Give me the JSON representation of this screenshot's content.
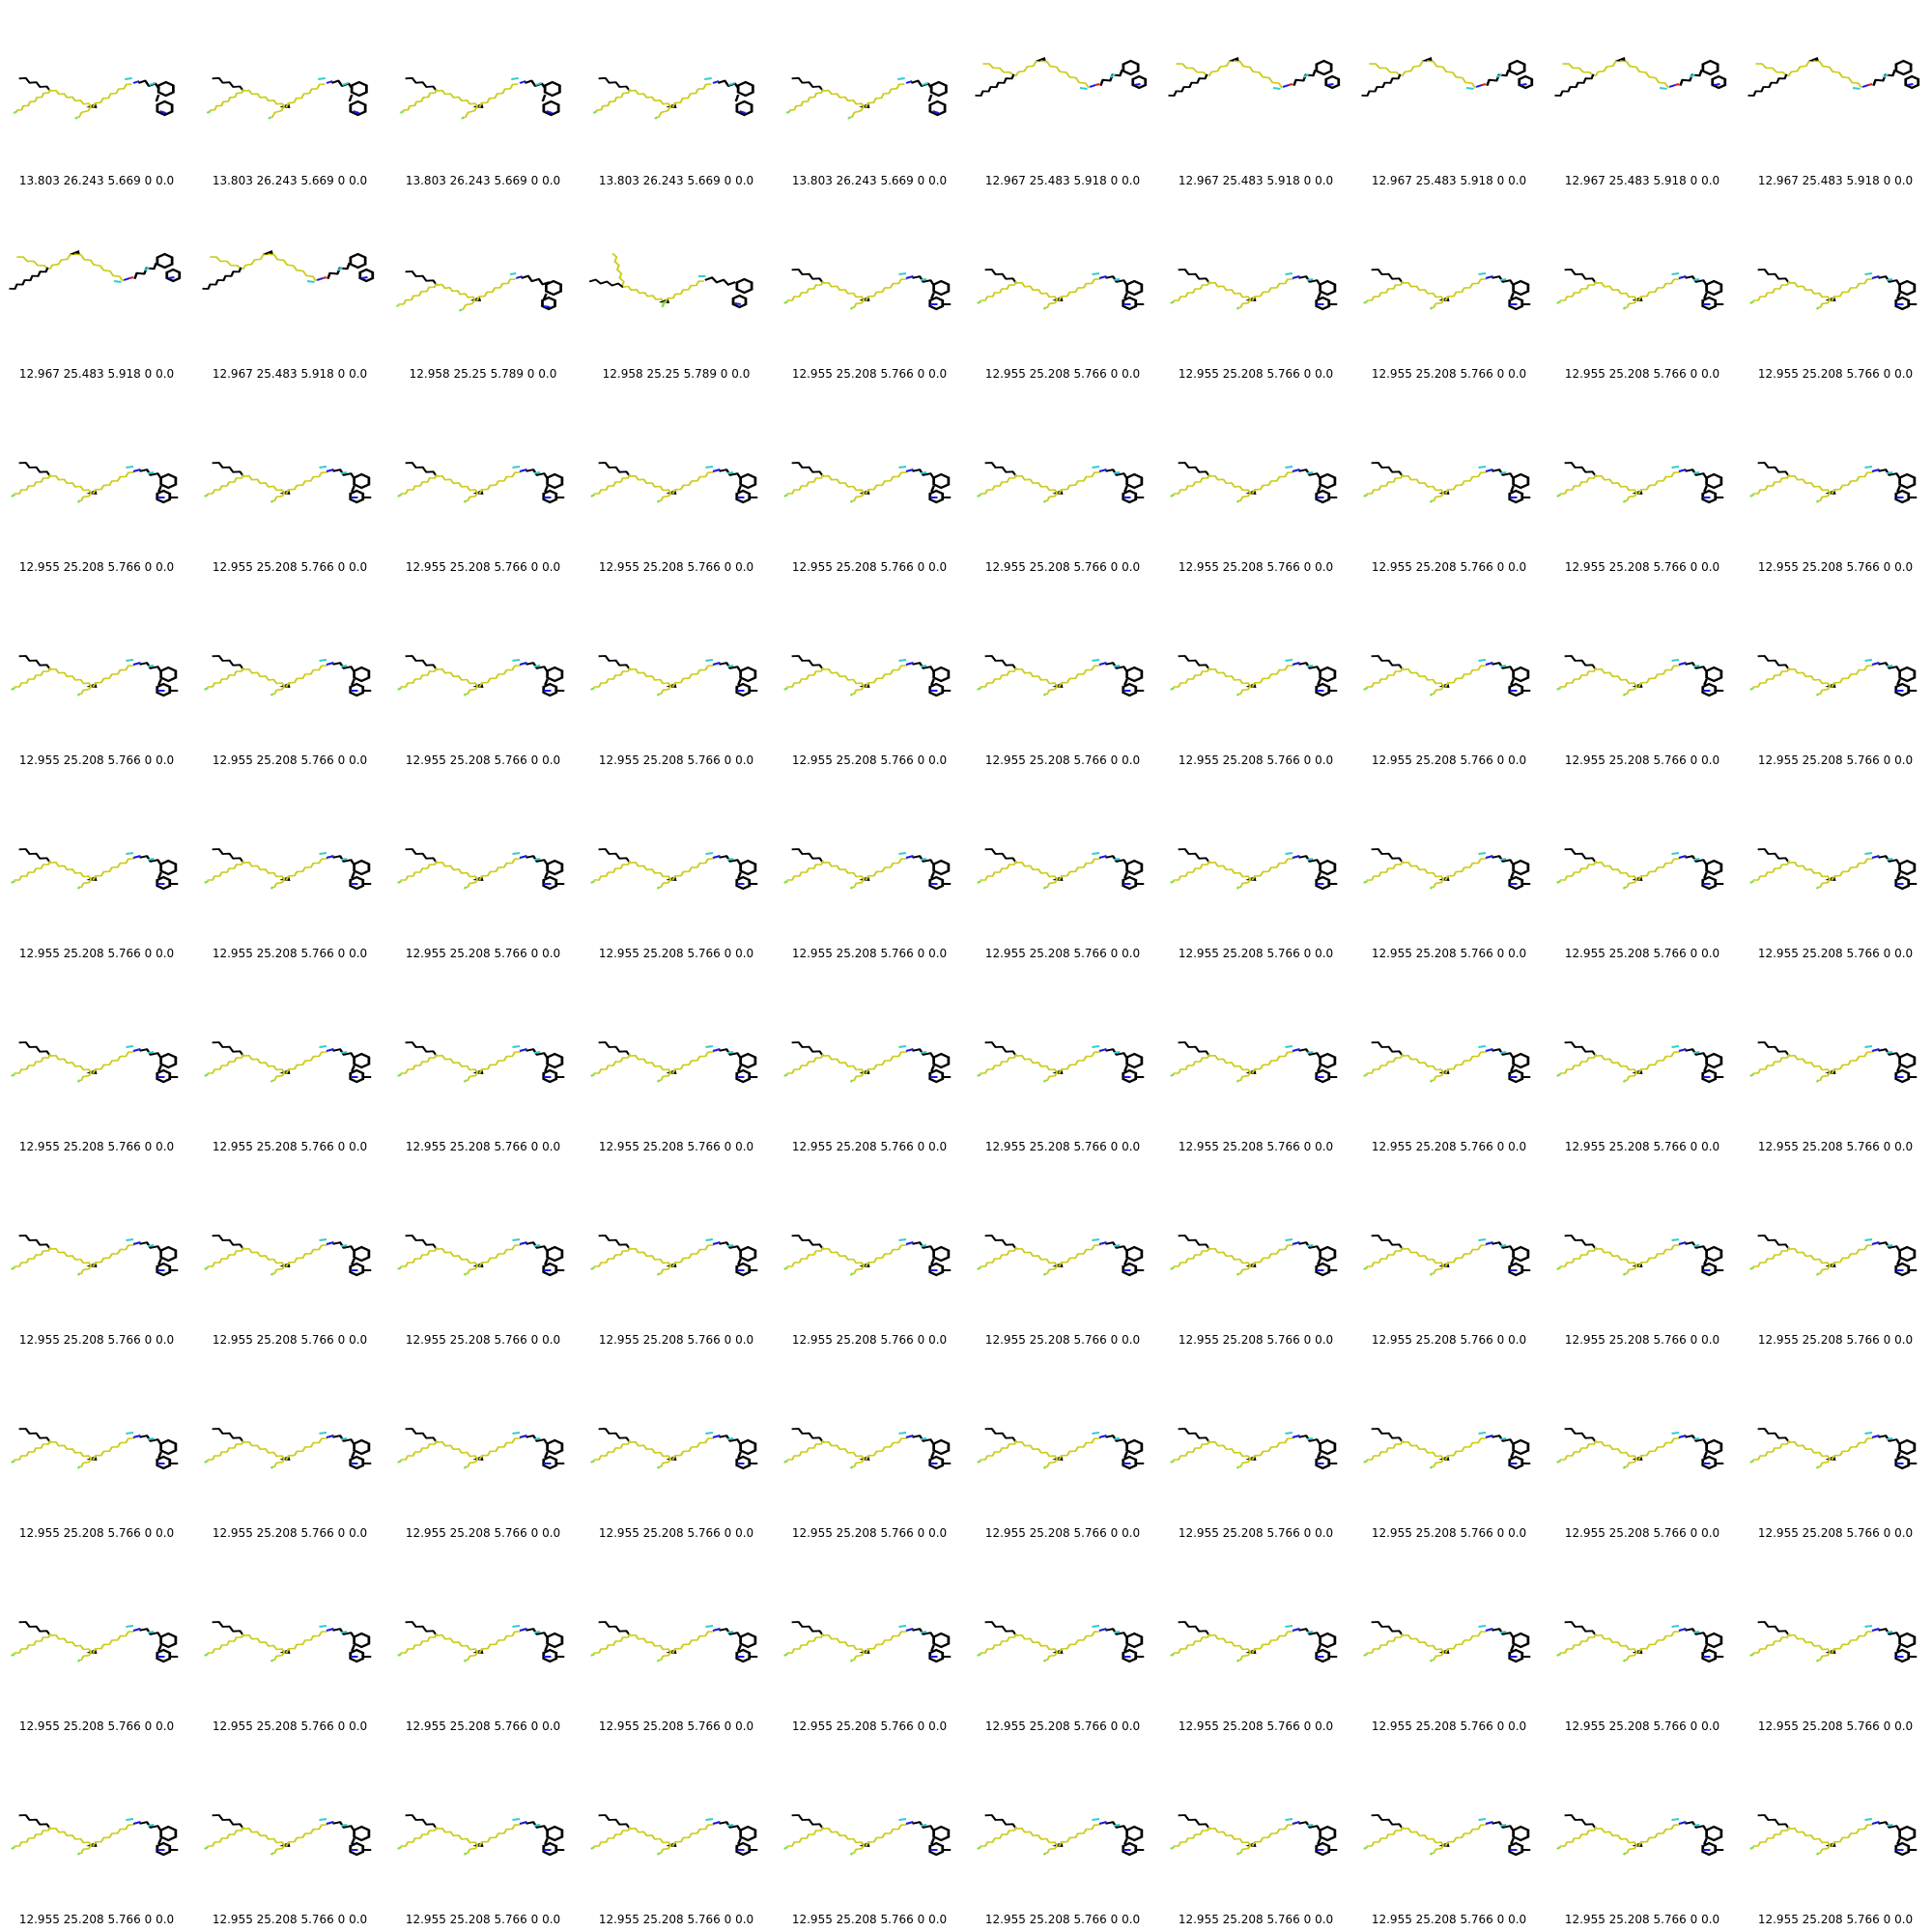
{
  "title": "",
  "colors": {
    "carbon": "#000000",
    "chain": "#cccc1a",
    "chain_end": "#80e04d",
    "nitrogen": "#1a1ae6",
    "oxygen": "#e61a1a",
    "fluorine": "#33cccc"
  },
  "cells": [
    {
      "label": "13.803 26.243 5.669 0 0.0",
      "pose": "A"
    },
    {
      "label": "13.803 26.243 5.669 0 0.0",
      "pose": "A"
    },
    {
      "label": "13.803 26.243 5.669 0 0.0",
      "pose": "A"
    },
    {
      "label": "13.803 26.243 5.669 0 0.0",
      "pose": "A"
    },
    {
      "label": "13.803 26.243 5.669 0 0.0",
      "pose": "A"
    },
    {
      "label": "12.967 25.483 5.918 0 0.0",
      "pose": "B"
    },
    {
      "label": "12.967 25.483 5.918 0 0.0",
      "pose": "B"
    },
    {
      "label": "12.967 25.483 5.918 0 0.0",
      "pose": "B"
    },
    {
      "label": "12.967 25.483 5.918 0 0.0",
      "pose": "B"
    },
    {
      "label": "12.967 25.483 5.918 0 0.0",
      "pose": "B"
    },
    {
      "label": "12.967 25.483 5.918 0 0.0",
      "pose": "B"
    },
    {
      "label": "12.967 25.483 5.918 0 0.0",
      "pose": "B"
    },
    {
      "label": "12.958 25.25 5.789 0 0.0",
      "pose": "C"
    },
    {
      "label": "12.958 25.25 5.789 0 0.0",
      "pose": "D"
    },
    {
      "label": "12.955 25.208 5.766 0 0.0",
      "pose": "E"
    },
    {
      "label": "12.955 25.208 5.766 0 0.0",
      "pose": "E"
    },
    {
      "label": "12.955 25.208 5.766 0 0.0",
      "pose": "E"
    },
    {
      "label": "12.955 25.208 5.766 0 0.0",
      "pose": "E"
    },
    {
      "label": "12.955 25.208 5.766 0 0.0",
      "pose": "E"
    },
    {
      "label": "12.955 25.208 5.766 0 0.0",
      "pose": "E"
    },
    {
      "label": "12.955 25.208 5.766 0 0.0",
      "pose": "E"
    },
    {
      "label": "12.955 25.208 5.766 0 0.0",
      "pose": "E"
    },
    {
      "label": "12.955 25.208 5.766 0 0.0",
      "pose": "E"
    },
    {
      "label": "12.955 25.208 5.766 0 0.0",
      "pose": "E"
    },
    {
      "label": "12.955 25.208 5.766 0 0.0",
      "pose": "E"
    },
    {
      "label": "12.955 25.208 5.766 0 0.0",
      "pose": "E"
    },
    {
      "label": "12.955 25.208 5.766 0 0.0",
      "pose": "E"
    },
    {
      "label": "12.955 25.208 5.766 0 0.0",
      "pose": "E"
    },
    {
      "label": "12.955 25.208 5.766 0 0.0",
      "pose": "E"
    },
    {
      "label": "12.955 25.208 5.766 0 0.0",
      "pose": "E"
    },
    {
      "label": "12.955 25.208 5.766 0 0.0",
      "pose": "E"
    },
    {
      "label": "12.955 25.208 5.766 0 0.0",
      "pose": "E"
    },
    {
      "label": "12.955 25.208 5.766 0 0.0",
      "pose": "E"
    },
    {
      "label": "12.955 25.208 5.766 0 0.0",
      "pose": "E"
    },
    {
      "label": "12.955 25.208 5.766 0 0.0",
      "pose": "E"
    },
    {
      "label": "12.955 25.208 5.766 0 0.0",
      "pose": "E"
    },
    {
      "label": "12.955 25.208 5.766 0 0.0",
      "pose": "E"
    },
    {
      "label": "12.955 25.208 5.766 0 0.0",
      "pose": "E"
    },
    {
      "label": "12.955 25.208 5.766 0 0.0",
      "pose": "E"
    },
    {
      "label": "12.955 25.208 5.766 0 0.0",
      "pose": "E"
    },
    {
      "label": "12.955 25.208 5.766 0 0.0",
      "pose": "E"
    },
    {
      "label": "12.955 25.208 5.766 0 0.0",
      "pose": "E"
    },
    {
      "label": "12.955 25.208 5.766 0 0.0",
      "pose": "E"
    },
    {
      "label": "12.955 25.208 5.766 0 0.0",
      "pose": "E"
    },
    {
      "label": "12.955 25.208 5.766 0 0.0",
      "pose": "E"
    },
    {
      "label": "12.955 25.208 5.766 0 0.0",
      "pose": "E"
    },
    {
      "label": "12.955 25.208 5.766 0 0.0",
      "pose": "E"
    },
    {
      "label": "12.955 25.208 5.766 0 0.0",
      "pose": "E"
    },
    {
      "label": "12.955 25.208 5.766 0 0.0",
      "pose": "E"
    },
    {
      "label": "12.955 25.208 5.766 0 0.0",
      "pose": "E"
    },
    {
      "label": "12.955 25.208 5.766 0 0.0",
      "pose": "E"
    },
    {
      "label": "12.955 25.208 5.766 0 0.0",
      "pose": "E"
    },
    {
      "label": "12.955 25.208 5.766 0 0.0",
      "pose": "E"
    },
    {
      "label": "12.955 25.208 5.766 0 0.0",
      "pose": "E"
    },
    {
      "label": "12.955 25.208 5.766 0 0.0",
      "pose": "E"
    },
    {
      "label": "12.955 25.208 5.766 0 0.0",
      "pose": "E"
    },
    {
      "label": "12.955 25.208 5.766 0 0.0",
      "pose": "E"
    },
    {
      "label": "12.955 25.208 5.766 0 0.0",
      "pose": "E"
    },
    {
      "label": "12.955 25.208 5.766 0 0.0",
      "pose": "E"
    },
    {
      "label": "12.955 25.208 5.766 0 0.0",
      "pose": "E"
    },
    {
      "label": "12.955 25.208 5.766 0 0.0",
      "pose": "E"
    },
    {
      "label": "12.955 25.208 5.766 0 0.0",
      "pose": "E"
    },
    {
      "label": "12.955 25.208 5.766 0 0.0",
      "pose": "E"
    },
    {
      "label": "12.955 25.208 5.766 0 0.0",
      "pose": "E"
    },
    {
      "label": "12.955 25.208 5.766 0 0.0",
      "pose": "E"
    },
    {
      "label": "12.955 25.208 5.766 0 0.0",
      "pose": "E"
    },
    {
      "label": "12.955 25.208 5.766 0 0.0",
      "pose": "E"
    },
    {
      "label": "12.955 25.208 5.766 0 0.0",
      "pose": "E"
    },
    {
      "label": "12.955 25.208 5.766 0 0.0",
      "pose": "E"
    },
    {
      "label": "12.955 25.208 5.766 0 0.0",
      "pose": "E"
    },
    {
      "label": "12.955 25.208 5.766 0 0.0",
      "pose": "E"
    },
    {
      "label": "12.955 25.208 5.766 0 0.0",
      "pose": "E"
    },
    {
      "label": "12.955 25.208 5.766 0 0.0",
      "pose": "E"
    },
    {
      "label": "12.955 25.208 5.766 0 0.0",
      "pose": "E"
    },
    {
      "label": "12.955 25.208 5.766 0 0.0",
      "pose": "E"
    },
    {
      "label": "12.955 25.208 5.766 0 0.0",
      "pose": "E"
    },
    {
      "label": "12.955 25.208 5.766 0 0.0",
      "pose": "E"
    },
    {
      "label": "12.955 25.208 5.766 0 0.0",
      "pose": "E"
    },
    {
      "label": "12.955 25.208 5.766 0 0.0",
      "pose": "E"
    },
    {
      "label": "12.955 25.208 5.766 0 0.0",
      "pose": "E"
    },
    {
      "label": "12.955 25.208 5.766 0 0.0",
      "pose": "E"
    },
    {
      "label": "12.955 25.208 5.766 0 0.0",
      "pose": "E"
    },
    {
      "label": "12.955 25.208 5.766 0 0.0",
      "pose": "E"
    },
    {
      "label": "12.955 25.208 5.766 0 0.0",
      "pose": "E"
    },
    {
      "label": "12.955 25.208 5.766 0 0.0",
      "pose": "E"
    },
    {
      "label": "12.955 25.208 5.766 0 0.0",
      "pose": "E"
    },
    {
      "label": "12.955 25.208 5.766 0 0.0",
      "pose": "E"
    },
    {
      "label": "12.955 25.208 5.766 0 0.0",
      "pose": "E"
    },
    {
      "label": "12.955 25.208 5.766 0 0.0",
      "pose": "E"
    },
    {
      "label": "12.955 25.208 5.766 0 0.0",
      "pose": "E"
    },
    {
      "label": "12.955 25.208 5.766 0 0.0",
      "pose": "E"
    },
    {
      "label": "12.955 25.208 5.766 0 0.0",
      "pose": "E"
    },
    {
      "label": "12.955 25.208 5.766 0 0.0",
      "pose": "E"
    },
    {
      "label": "12.955 25.208 5.766 0 0.0",
      "pose": "E"
    },
    {
      "label": "12.955 25.208 5.766 0 0.0",
      "pose": "E"
    },
    {
      "label": "12.955 25.208 5.766 0 0.0",
      "pose": "E"
    },
    {
      "label": "12.955 25.208 5.766 0 0.0",
      "pose": "E"
    },
    {
      "label": "12.955 25.208 5.766 0 0.0",
      "pose": "E"
    },
    {
      "label": "12.955 25.208 5.766 0 0.0",
      "pose": "E"
    },
    {
      "label": "12.955 25.208 5.766 0 0.0",
      "pose": "E"
    }
  ]
}
